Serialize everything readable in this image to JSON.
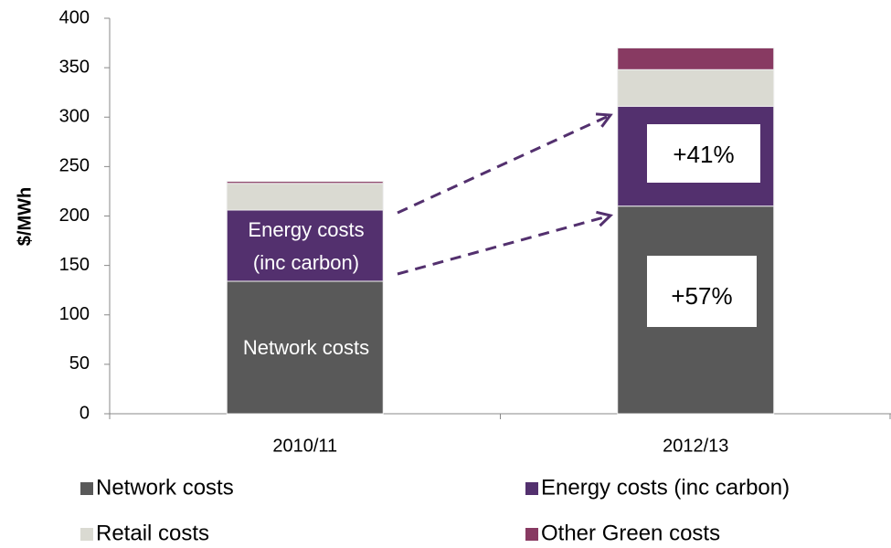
{
  "chart_data": {
    "type": "stacked_bar",
    "y_label": "$/MWh",
    "categories": [
      "2010/11",
      "2012/13"
    ],
    "series": [
      {
        "name": "Network costs",
        "color": "#595959",
        "values": [
          134,
          210
        ]
      },
      {
        "name": "Energy costs (inc carbon)",
        "color": "#53306e",
        "values": [
          72,
          101
        ]
      },
      {
        "name": "Retail costs",
        "color": "#dadad2",
        "values": [
          27,
          37
        ]
      },
      {
        "name": "Other Green costs",
        "color": "#883a62",
        "values": [
          2,
          22
        ]
      }
    ],
    "ylim": [
      0,
      400
    ],
    "yticks": [
      0,
      50,
      100,
      150,
      200,
      250,
      300,
      350,
      400
    ],
    "annotations": [
      "Energy costs",
      "(inc carbon)",
      "Network costs",
      "+41%",
      "+57%"
    ],
    "legend": "bottom"
  }
}
